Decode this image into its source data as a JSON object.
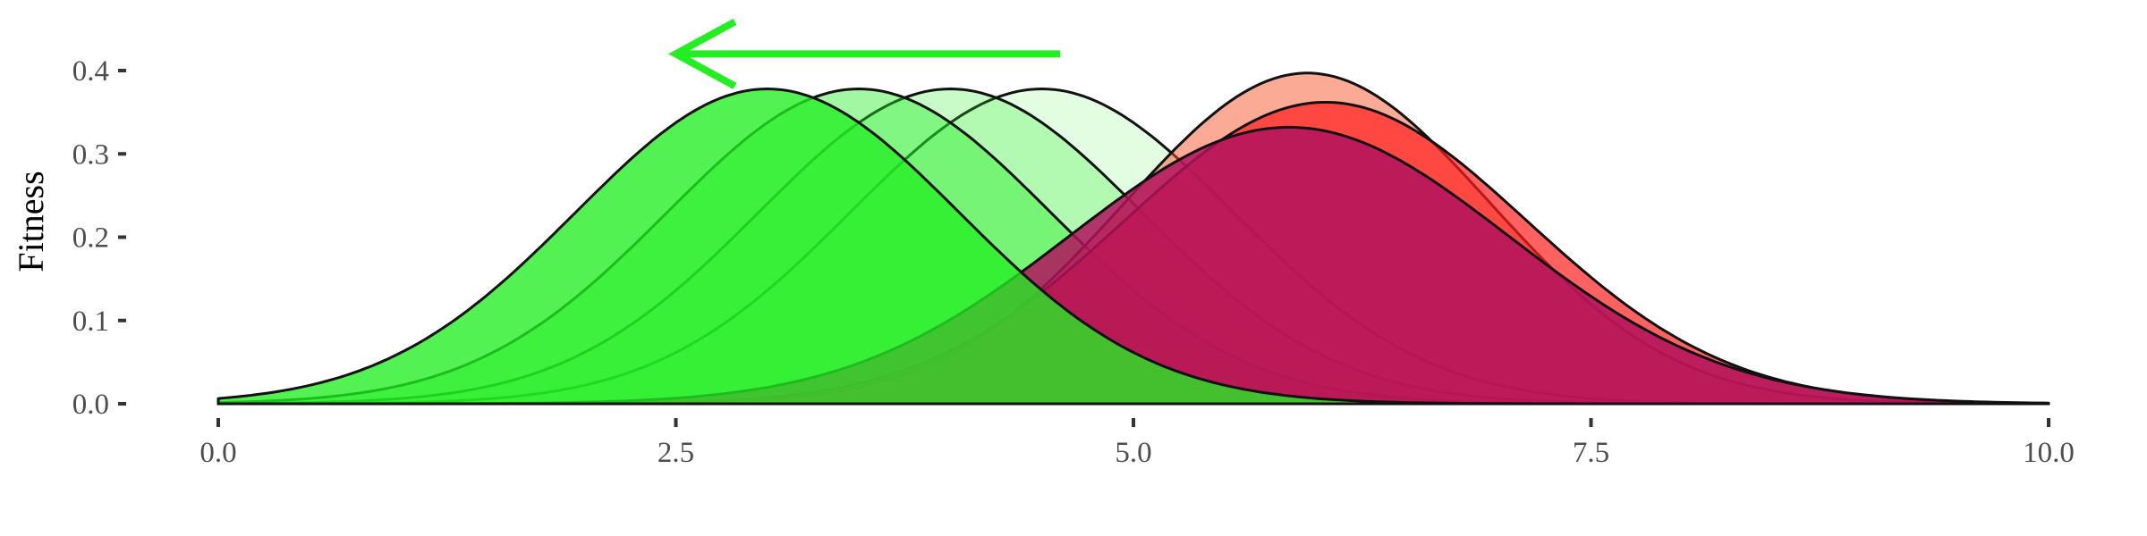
{
  "chart_data": {
    "type": "area",
    "title": "",
    "xlabel": "",
    "ylabel": "Fitness",
    "xlim": [
      0,
      10
    ],
    "ylim": [
      0,
      0.4
    ],
    "grid": false,
    "x_ticks": [
      "0.0",
      "2.5",
      "5.0",
      "7.5",
      "10.0"
    ],
    "y_ticks": [
      "0.0",
      "0.1",
      "0.2",
      "0.3",
      "0.4"
    ],
    "annotations": [
      {
        "type": "arrow",
        "from": [
          4.6,
          0.42
        ],
        "to": [
          2.5,
          0.42
        ],
        "color": "#22ee22",
        "meaning": "shift toward lower x"
      }
    ],
    "series": [
      {
        "group": "green",
        "mean": 4.5,
        "sd": 1.05,
        "peak": 0.378,
        "fill": "#22ee22",
        "opacity": 0.13
      },
      {
        "group": "green",
        "mean": 4.0,
        "sd": 1.05,
        "peak": 0.378,
        "fill": "#22ee22",
        "opacity": 0.25
      },
      {
        "group": "green",
        "mean": 3.5,
        "sd": 1.05,
        "peak": 0.378,
        "fill": "#22ee22",
        "opacity": 0.42
      },
      {
        "group": "red",
        "mean": 5.95,
        "sd": 1.0,
        "peak": 0.397,
        "fill": "#f8562c",
        "opacity": 0.5
      },
      {
        "group": "red",
        "mean": 6.05,
        "sd": 1.1,
        "peak": 0.362,
        "fill": "#ff1e1e",
        "opacity": 0.7
      },
      {
        "group": "red",
        "mean": 5.85,
        "sd": 1.2,
        "peak": 0.332,
        "fill": "#b0135d",
        "opacity": 0.85
      },
      {
        "group": "green",
        "mean": 3.0,
        "sd": 1.05,
        "peak": 0.378,
        "fill": "#22ee22",
        "opacity": 0.78
      }
    ]
  }
}
